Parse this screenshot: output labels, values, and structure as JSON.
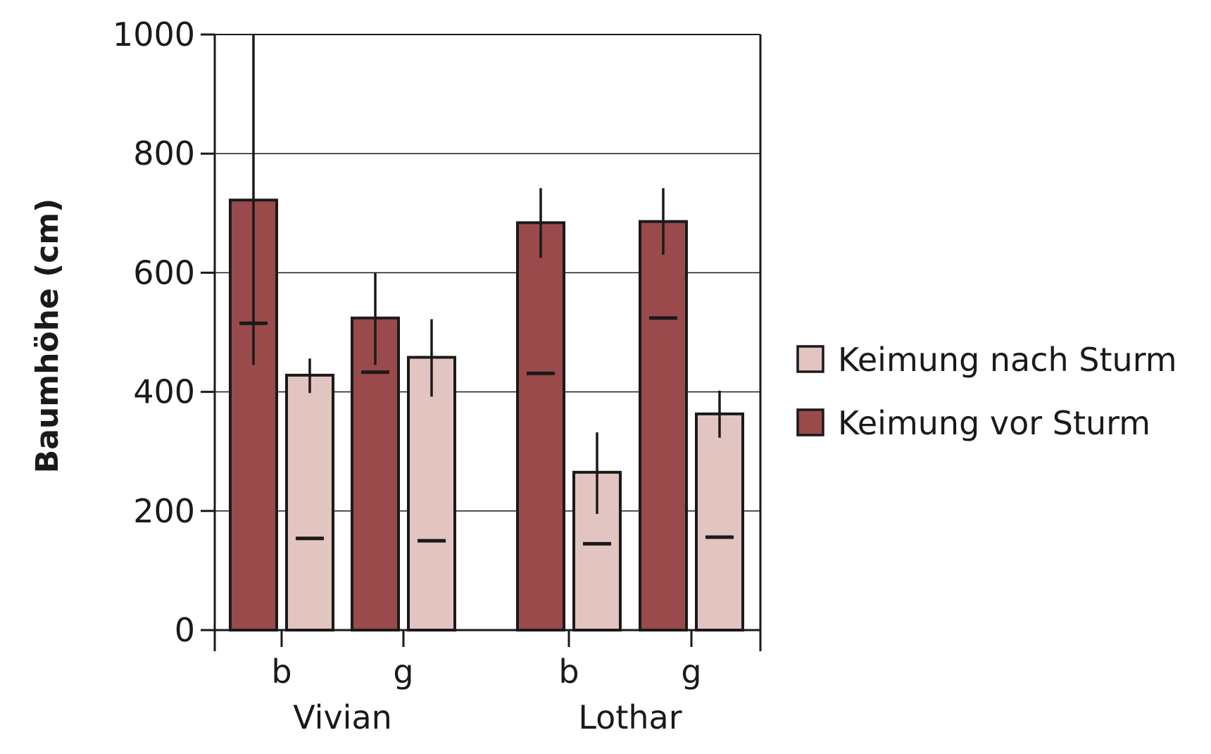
{
  "chart_data": {
    "type": "bar",
    "title": "",
    "ylabel": "Baumhöhe (cm)",
    "xlabel": "",
    "ylim": [
      0,
      1000
    ],
    "yticks": [
      0,
      200,
      400,
      600,
      800,
      1000
    ],
    "grid": true,
    "legend_position": "right",
    "groups": [
      {
        "name": "Vivian",
        "categories": [
          "b",
          "g"
        ]
      },
      {
        "name": "Lothar",
        "categories": [
          "b",
          "g"
        ]
      }
    ],
    "categories": [
      "b",
      "g",
      "b",
      "g"
    ],
    "series": [
      {
        "name": "Keimung vor Sturm",
        "color": "#9b4a4b",
        "values": [
          722,
          524,
          684,
          686
        ],
        "error_low": [
          445,
          445,
          625,
          630
        ],
        "error_high": [
          1000,
          600,
          742,
          742
        ],
        "median": [
          515,
          433,
          431,
          524
        ]
      },
      {
        "name": "Keimung nach Sturm",
        "color": "#e2c4c1",
        "values": [
          428,
          458,
          265,
          363
        ],
        "error_low": [
          398,
          392,
          195,
          323
        ],
        "error_high": [
          456,
          522,
          332,
          402
        ],
        "median": [
          154,
          150,
          145,
          156
        ]
      }
    ],
    "legend": [
      "Keimung nach Sturm",
      "Keimung vor Sturm"
    ]
  }
}
